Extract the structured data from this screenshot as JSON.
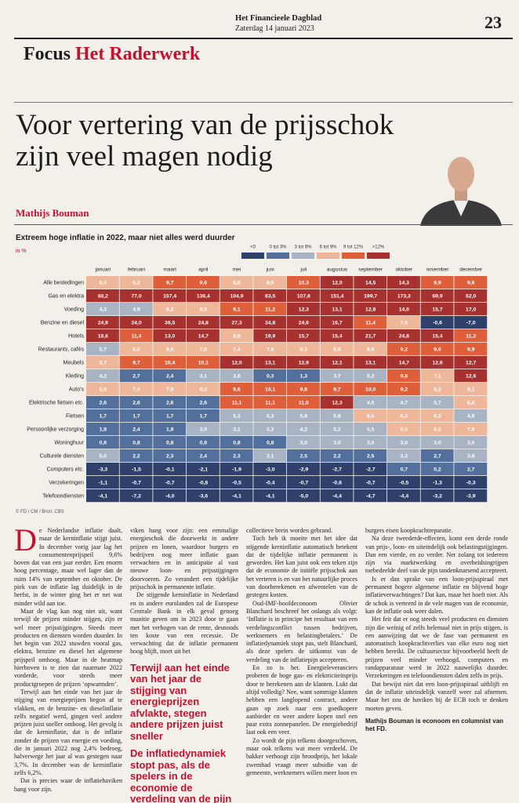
{
  "header": {
    "paper": "Het Financieele Dagblad",
    "date": "Zaterdag 14 januari 2023",
    "page": "23",
    "section": "Focus",
    "rubric": "Het Raderwerk"
  },
  "headline": "Voor vertering van de prijsschok zijn veel magen nodig",
  "author": "Mathijs Bouman",
  "heatmap": {
    "title": "Extreem hoge inflatie in 2022, maar niet alles werd duurder",
    "unit": "in %",
    "source": "© FD / CM / Bron: CBS",
    "thresholds": [
      0,
      3,
      6,
      9,
      12
    ],
    "legend": [
      {
        "label": "<0",
        "color": "#2f406a"
      },
      {
        "label": "0 tot 3%",
        "color": "#52709b"
      },
      {
        "label": "3 tot 6%",
        "color": "#a8b3c3"
      },
      {
        "label": "6 tot 9%",
        "color": "#efb79a"
      },
      {
        "label": "9 tot 12%",
        "color": "#de5f3a"
      },
      {
        "label": ">12%",
        "color": "#a6312f"
      }
    ],
    "months": [
      "januari",
      "februari",
      "maart",
      "april",
      "mei",
      "juni",
      "juli",
      "augustus",
      "september",
      "oktober",
      "november",
      "december"
    ],
    "rows": [
      {
        "label": "Alle bestedingen",
        "values": [
          6.4,
          6.2,
          9.7,
          9.6,
          8.8,
          8.6,
          10.3,
          12.0,
          14.5,
          14.3,
          9.9,
          9.6
        ],
        "value_labels": [
          "6,4",
          "6,2",
          "9,7",
          "9,6",
          "8,8",
          "8,6",
          "10,3",
          "12,0",
          "14,5",
          "14,3",
          "9,9",
          "9,6"
        ]
      },
      {
        "label": "Gas en elektra",
        "values": [
          88.2,
          77.0,
          157.4,
          136.4,
          104.9,
          83.5,
          107.8,
          151.4,
          199.7,
          173.3,
          69.9,
          52.0
        ],
        "value_labels": [
          "88,2",
          "77,0",
          "157,4",
          "136,4",
          "104,9",
          "83,5",
          "107,8",
          "151,4",
          "199,7",
          "173,3",
          "69,9",
          "52,0"
        ]
      },
      {
        "label": "Voeding",
        "values": [
          4.3,
          4.9,
          6.2,
          8.5,
          9.1,
          11.2,
          12.3,
          13.1,
          12.8,
          14.0,
          15.7,
          17.0
        ],
        "value_labels": [
          "4,3",
          "4,9",
          "6,2",
          "8,5",
          "9,1",
          "11,2",
          "12,3",
          "13,1",
          "12,8",
          "14,0",
          "15,7",
          "17,0"
        ]
      },
      {
        "label": "Benzine en diesel",
        "values": [
          24.9,
          24.0,
          36.5,
          24.8,
          27.3,
          34.8,
          24.6,
          16.7,
          11.4,
          7.5,
          -0.6,
          -7.0
        ],
        "value_labels": [
          "24,9",
          "24,0",
          "36,5",
          "24,8",
          "27,3",
          "34,8",
          "24,6",
          "16,7",
          "11,4",
          "7,5",
          "-0,6",
          "-7,0"
        ]
      },
      {
        "label": "Hotels",
        "values": [
          18.6,
          11.4,
          13.0,
          14.7,
          8.8,
          19.9,
          15.7,
          15.4,
          21.7,
          24.8,
          15.4,
          11.3
        ],
        "value_labels": [
          "18,6",
          "11,4",
          "13,0",
          "14,7",
          "8,8",
          "19,9",
          "15,7",
          "15,4",
          "21,7",
          "24,8",
          "15,4",
          "11,3"
        ]
      },
      {
        "label": "Restaurants, cafés",
        "values": [
          5.7,
          6.0,
          6.0,
          7.0,
          7.4,
          7.8,
          8.3,
          8.6,
          8.9,
          9.2,
          9.6,
          9.9
        ],
        "value_labels": [
          "5,7",
          "6,0",
          "6,0",
          "7,0",
          "7,4",
          "7,8",
          "8,3",
          "8,6",
          "8,9",
          "9,2",
          "9,6",
          "9,9"
        ]
      },
      {
        "label": "Meubels",
        "values": [
          6.7,
          9.7,
          10.4,
          10.1,
          12.0,
          13.1,
          12.9,
          12.1,
          13.1,
          14.7,
          12.6,
          12.7
        ],
        "value_labels": [
          "6,7",
          "9,7",
          "10,4",
          "10,1",
          "12,0",
          "13,1",
          "12,9",
          "12,1",
          "13,1",
          "14,7",
          "12,6",
          "12,7"
        ]
      },
      {
        "label": "Kleding",
        "values": [
          4.2,
          2.7,
          2.4,
          3.1,
          3.6,
          0.3,
          1.3,
          3.7,
          5.2,
          9.8,
          7.1,
          12.6
        ],
        "value_labels": [
          "4,2",
          "2,7",
          "2,4",
          "3,1",
          "3,6",
          "0,3",
          "1,3",
          "3,7",
          "5,2",
          "9,8",
          "7,1",
          "12,6"
        ]
      },
      {
        "label": "Auto's",
        "values": [
          6.8,
          7.4,
          7.8,
          8.3,
          9.6,
          10.1,
          9.8,
          9.7,
          10.0,
          9.2,
          8.3,
          8.1
        ],
        "value_labels": [
          "6,8",
          "7,4",
          "7,8",
          "8,3",
          "9,6",
          "10,1",
          "9,8",
          "9,7",
          "10,0",
          "9,2",
          "8,3",
          "8,1"
        ]
      },
      {
        "label": "Elektrische fietsen etc.",
        "values": [
          2.6,
          2.6,
          2.6,
          2.6,
          11.1,
          11.1,
          11.5,
          12.3,
          4.5,
          4.7,
          5.7,
          6.6
        ],
        "value_labels": [
          "2,6",
          "2,6",
          "2,6",
          "2,6",
          "11,1",
          "11,1",
          "11,5",
          "12,3",
          "4,5",
          "4,7",
          "5,7",
          "6,6"
        ]
      },
      {
        "label": "Fietsen",
        "values": [
          1.7,
          1.7,
          1.7,
          1.7,
          5.3,
          5.3,
          5.8,
          5.8,
          6.0,
          6.3,
          6.2,
          4.8
        ],
        "value_labels": [
          "1,7",
          "1,7",
          "1,7",
          "1,7",
          "5,3",
          "5,3",
          "5,8",
          "5,8",
          "6,0",
          "6,3",
          "6,2",
          "4,8"
        ]
      },
      {
        "label": "Persoonlijke verzorging",
        "values": [
          1.8,
          2.4,
          1.8,
          3.0,
          3.1,
          3.3,
          4.2,
          5.2,
          5.5,
          6.5,
          6.2,
          7.9
        ],
        "value_labels": [
          "1,8",
          "2,4",
          "1,8",
          "3,0",
          "3,1",
          "3,3",
          "4,2",
          "5,2",
          "5,5",
          "6,5",
          "6,2",
          "7,9"
        ]
      },
      {
        "label": "Woninghuur",
        "values": [
          0.8,
          0.8,
          0.8,
          0.8,
          0.8,
          0.8,
          3.0,
          3.0,
          3.0,
          3.0,
          3.0,
          3.0
        ],
        "value_labels": [
          "0,8",
          "0,8",
          "0,8",
          "0,8",
          "0,8",
          "0,8",
          "3,0",
          "3,0",
          "3,0",
          "3,0",
          "3,0",
          "3,0"
        ]
      },
      {
        "label": "Culturele diensten",
        "values": [
          5.0,
          2.2,
          2.3,
          2.4,
          2.3,
          3.1,
          2.5,
          2.2,
          2.5,
          3.3,
          2.7,
          3.8
        ],
        "value_labels": [
          "5,0",
          "2,2",
          "2,3",
          "2,4",
          "2,3",
          "3,1",
          "2,5",
          "2,2",
          "2,5",
          "3,3",
          "2,7",
          "3,8"
        ]
      },
      {
        "label": "Computers etc.",
        "values": [
          -3.3,
          -1.5,
          -0.1,
          -2.1,
          -1.9,
          -3.0,
          -2.9,
          -2.7,
          -2.7,
          0.7,
          0.2,
          2.7
        ],
        "value_labels": [
          "-3,3",
          "-1,5",
          "-0,1",
          "-2,1",
          "-1,9",
          "-3,0",
          "-2,9",
          "-2,7",
          "-2,7",
          "0,7",
          "0,2",
          "2,7"
        ]
      },
      {
        "label": "Verzekeringen",
        "values": [
          -1.1,
          -0.7,
          -0.7,
          -0.8,
          -0.5,
          -0.4,
          -0.7,
          -0.8,
          -0.7,
          -0.5,
          -1.3,
          -0.3
        ],
        "value_labels": [
          "-1,1",
          "-0,7",
          "-0,7",
          "-0,8",
          "-0,5",
          "-0,4",
          "-0,7",
          "-0,8",
          "-0,7",
          "-0,5",
          "-1,3",
          "-0,3"
        ]
      },
      {
        "label": "Telefoondiensten",
        "values": [
          -4.1,
          -7.2,
          -4.0,
          -3.6,
          -4.1,
          -4.1,
          -5.0,
          -4.4,
          -4.7,
          -4.4,
          -3.2,
          -3.9
        ],
        "value_labels": [
          "-4,1",
          "-7,2",
          "-4,0",
          "-3,6",
          "-4,1",
          "-4,1",
          "-5,0",
          "-4,4",
          "-4,7",
          "-4,4",
          "-3,2",
          "-3,9"
        ]
      }
    ]
  },
  "article": {
    "columns": [
      [
        "De Nederlandse inflatie daalt, maar de kerninflatie stijgt juist. In december vorig jaar lag het consumentenprijspeil 9,6% boven dat van een jaar eerder. Een enorm hoog percentage, maar wel lager dan de ruim 14% van september en oktober. De piek van de inflatie lag duidelijk in de herfst, in de winter ging het er net wat minder wild aan toe.",
        "Maar de vlag kan nog niet uit, want terwijl de prijzen minder stijgen, zijn er wel meer prijsstijgingen. Steeds meer producten en diensten worden duurder. In het begin van 2022 stuwden vooral gas, elektra, benzine en diesel het algemene prijspeil omhoog. Maar in de heatmap hierboven is te zien dat naarmate 2022 vorderde, voor steeds meer productgroepen de prijzen ‘opwarmden’.",
        "Terwijl aan het einde van het jaar de stijging van energieprijzen begon af te vlakken, en de benzine- en dieselinflatie zelfs negatief werd, gingen veel andere prijzen juist sneller omhoog. Het gevolg is dat de kerninflatie, dat is de inflatie zonder de prijzen van energie en voeding, die in januari 2022 nog 2,4% bedroeg, halverwege het jaar al was gestegen naar 3,7%. In december was de kerninflatie zelfs 6,2%.",
        "Dat is precies waar de inflatiehaviken bang voor zijn."
      ],
      [
        "viken bang voor zijn: een eenmalige energieschok die doorwerkt in andere prijzen en lonen, waardoor burgers en bedrijven nog meer inflatie gaan verwachten en in anticipatie al vast nieuwe loon- en prijsstijgingen doorvoeren. Zo verandert een tijdelijke prijsschok in permanente inflatie.",
        "De stijgende kerninflatie in Nederland en in andere eurolanden zal de Europese Centrale Bank in elk geval genoeg munitie geven om in 2023 door te gaan met het verhogen van de rente, desnoods ten koste van een recessie. De verwachting dat de inflatie permanent hoog blijft, moet uit het"
      ],
      [
        "collectieve brein worden gebrand.",
        "Toch heb ik moeite met het idee dat stijgende kerninflatie automatisch betekent dat de tijdelijke inflatie permanent is geworden. Het kan juist ook een teken zijn dat de economie de initiële prijsschok aan het verteren is en van het natuurlijke proces van doorberekenen en afwentelen van de gestegen kosten.",
        "Oud-IMF-hoofdeconoom Olivier Blanchard beschreef het onlangs als volgt: ‘Inflatie is in principe het resultaat van een verdelingsconflict tussen bedrijven, werknemers en belastingbetalers.’ De inflatiedynamiek stopt pas, stelt Blanchard, als deze spelers de uitkomst van de verdeling van de inflatiepijn accepteren.",
        "En zo is het. Energieleveranciers proberen de hoge gas- en elektriciteitsprijs door te berekenen aan de klanten. Lukt dat altijd volledig? Nee, want sommige klanten hebben een langlopend contract, andere gaan op zoek naar een goedkopere aanbieder en weer andere kopen snel een paar extra zonnepanelen. De energiebedrijf laat ook een veer.",
        "Zo wordt de pijn telkens doorgeschoven, maar ook telkens wat meer verdeeld. De bakker verhoogt zijn broodprijs, het lokale zwembad vraagt meer subsidie van de gemeente, werknemers willen meer loon en"
      ],
      [
        "burgers eisen koopkrachtreparatie.",
        "Na deze tweederde-effecten, komt een derde ronde van prijs-, loon- en uiteindelijk ook belastingstijgingen. Dan een vierde, en zo verder. Net zolang tot iedereen zijn via marktwerking en overheidsingrijpen toebedeelde deel van de pijn tandenknarsend accepteert.",
        "Is er dan sprake van een loon-prijsspiraal met permanent hogere algemene inflatie en blijvend hoge inflatieverwachtingen? Dat kan, maar het hoeft niet. Als de schok is verteerd in de vele magen van de economie, kan de inflatie ook weer dalen.",
        "Het feit dat er nog steeds veel producten en diensten zijn die weinig of zelfs helemaal niet in prijs stijgen, is een aanwijzing dat we de fase van permanent en automatisch koopkrachtverlies van elke euro nog niet hebben bereikt. De cultuursector bijvoorbeeld heeft de prijzen veel minder verhoogd, computers en randapparatuur werd in 2022 nauwelijks duurder. Verzekeringen en telefoondiensten dalen zelfs in prijs.",
        "Dat bewijst niet dat een loon-prijsspiraal uitblijft en dat de inflatie uiteindelijk vanzelf weer zal afnemen. Maar het zou de haviken bij de ECB toch te denken moeten geven."
      ]
    ],
    "pull_quotes": [
      "Terwijl aan het einde van het jaar de stijging van energieprijzen afvlakte, stegen andere prijzen juist sneller",
      "De inflatiedynamiek stopt pas, als de spelers in de economie de verdeling van de pijn weten te verteren"
    ],
    "bio": "Mathijs Bouman is econoom en columnist van het FD."
  }
}
